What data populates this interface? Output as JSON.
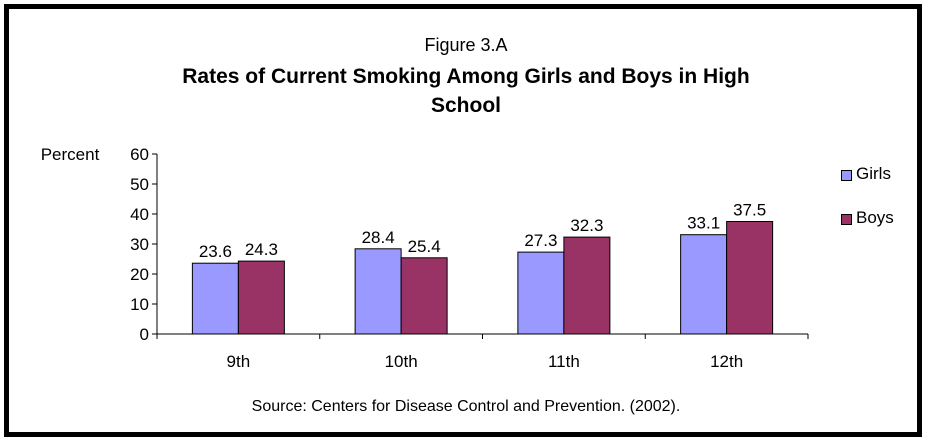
{
  "figure_label": "Figure 3.A",
  "source": "Source:  Centers for Disease Control and Prevention. (2002).",
  "colors": {
    "girls": "#9999ff",
    "boys": "#993366",
    "frame": "#000000"
  },
  "chart_data": {
    "type": "bar",
    "title_lines": [
      "Rates of Current Smoking Among Girls and Boys in High",
      "School"
    ],
    "ylabel": "Percent",
    "ylim": [
      0,
      60
    ],
    "yticks": [
      0,
      10,
      20,
      30,
      40,
      50,
      60
    ],
    "categories": [
      "9th",
      "10th",
      "11th",
      "12th"
    ],
    "series": [
      {
        "name": "Girls",
        "values": [
          23.6,
          28.4,
          27.3,
          33.1
        ]
      },
      {
        "name": "Boys",
        "values": [
          24.3,
          25.4,
          32.3,
          37.5
        ]
      }
    ],
    "data_labels": true,
    "grid": false,
    "legend": "right"
  }
}
